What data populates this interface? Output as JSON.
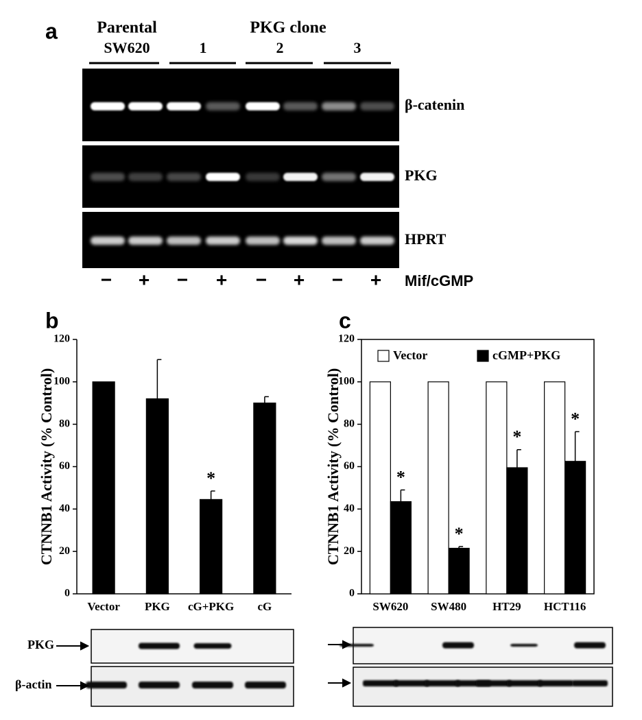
{
  "panel_a": {
    "label": "a",
    "groups": [
      "Parental",
      "SW620",
      "PKG clone",
      "1",
      "2",
      "3"
    ],
    "rows": [
      "β-catenin",
      "PKG",
      "HPRT"
    ],
    "treatment": "Mif/cGMP",
    "signs": [
      "−",
      "+",
      "−",
      "+",
      "−",
      "+",
      "−",
      "+"
    ]
  },
  "chart_data": [
    {
      "type": "bar",
      "panel_label": "b",
      "ylabel": "CTNNB1 Activity (% Control)",
      "categories": [
        "Vector",
        "PKG",
        "cG+PKG",
        "cG"
      ],
      "values": [
        100,
        92,
        44.5,
        90
      ],
      "errors": [
        0,
        18.5,
        4,
        3
      ],
      "significance": [
        null,
        null,
        "*",
        null
      ],
      "color": "#000000",
      "ylim": [
        0,
        120
      ],
      "yticks": [
        0,
        20,
        40,
        60,
        80,
        100,
        120
      ],
      "frame": false
    },
    {
      "type": "bar",
      "panel_label": "c",
      "ylabel": "CTNNB1 Activity (% Control)",
      "categories": [
        "SW620",
        "SW480",
        "HT29",
        "HCT116"
      ],
      "series": [
        {
          "name": "Vector",
          "color": "#ffffff",
          "values": [
            100,
            100,
            100,
            100
          ]
        },
        {
          "name": "cGMP+PKG",
          "color": "#000000",
          "values": [
            43.5,
            21.5,
            59.5,
            62.5
          ],
          "errors": [
            5.5,
            0.8,
            8.5,
            14
          ],
          "significance": [
            "*",
            "*",
            "*",
            "*"
          ]
        }
      ],
      "ylim": [
        0,
        120
      ],
      "yticks": [
        0,
        20,
        40,
        60,
        80,
        100,
        120
      ],
      "frame": true,
      "legend": "top"
    }
  ],
  "blot_b": {
    "labels": [
      "PKG",
      "β-actin"
    ]
  }
}
